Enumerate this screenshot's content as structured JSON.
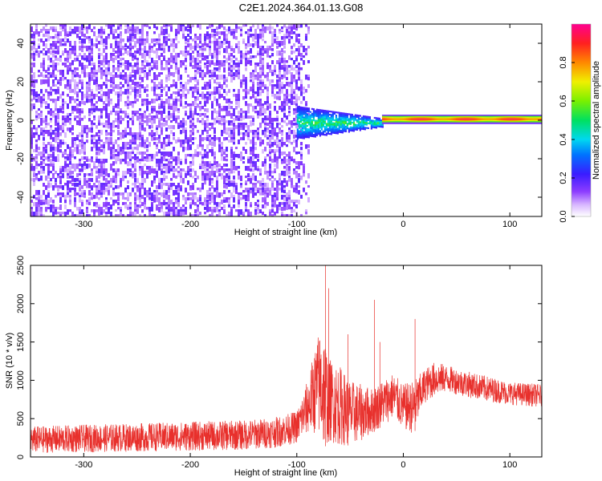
{
  "title": "C2E1.2024.364.01.13.G08",
  "chart_data": [
    {
      "type": "heatmap",
      "xlabel": "Height of straight line (km)",
      "ylabel": "Frequency (Hz)",
      "xlim": [
        -350,
        130
      ],
      "ylim": [
        -50,
        50
      ],
      "x_ticks": [
        -300,
        -200,
        -100,
        0,
        100
      ],
      "x_tick_labels": [
        "-300",
        "-200",
        "-100",
        "0",
        "100"
      ],
      "y_ticks": [
        -40,
        -20,
        0,
        20,
        40
      ],
      "y_tick_labels": [
        "-40",
        "-20",
        "0",
        "20",
        "40"
      ],
      "colorbar": {
        "label": "Normalized spectral amplitude",
        "range": [
          0,
          1
        ],
        "ticks": [
          0.0,
          0.2,
          0.4,
          0.6,
          0.8
        ],
        "tick_labels": [
          "0.0",
          "0.2",
          "0.4",
          "0.6",
          "0.8"
        ]
      },
      "regions": [
        {
          "x_range": [
            -350,
            -90
          ],
          "freq_range": [
            -50,
            50
          ],
          "amplitude_range": [
            0.05,
            0.18
          ],
          "pattern": "noise"
        },
        {
          "x_range": [
            -100,
            -20
          ],
          "freq_range": [
            -8,
            6
          ],
          "amplitude_range": [
            0.2,
            0.6
          ],
          "pattern": "band"
        },
        {
          "x_range": [
            -20,
            130
          ],
          "freq_range": [
            -1.5,
            2.5
          ],
          "amplitude_range": [
            0.45,
            0.95
          ],
          "pattern": "line"
        }
      ]
    },
    {
      "type": "line",
      "xlabel": "Height of straight line (km)",
      "ylabel": "SNR (10 * v/v)",
      "xlim": [
        -350,
        130
      ],
      "ylim": [
        0,
        2500
      ],
      "x_ticks": [
        -300,
        -200,
        -100,
        0,
        100
      ],
      "x_tick_labels": [
        "-300",
        "-200",
        "-100",
        "0",
        "100"
      ],
      "y_ticks": [
        0,
        500,
        1000,
        1500,
        2000,
        2500
      ],
      "y_tick_labels": [
        "0",
        "500",
        "1000",
        "1500",
        "2000",
        "2500"
      ],
      "color": "#e8302c",
      "series": [
        {
          "envelope": {
            "x": [
              -350,
              -300,
              -250,
              -200,
              -150,
              -120,
              -100,
              -90,
              -80,
              -75,
              -70,
              -60,
              -50,
              -40,
              -30,
              -20,
              -10,
              0,
              10,
              20,
              30,
              40,
              60,
              80,
              100,
              130
            ],
            "low": [
              50,
              60,
              70,
              80,
              90,
              120,
              180,
              300,
              300,
              100,
              200,
              150,
              150,
              200,
              300,
              400,
              500,
              350,
              300,
              700,
              800,
              850,
              780,
              720,
              680,
              650
            ],
            "high": [
              400,
              420,
              440,
              460,
              480,
              520,
              600,
              1000,
              1600,
              1700,
              1300,
              1200,
              1000,
              950,
              900,
              1000,
              1100,
              950,
              1000,
              1150,
              1250,
              1200,
              1120,
              1050,
              980,
              950
            ]
          },
          "spikes": [
            {
              "x": -73,
              "y": 2500
            },
            {
              "x": -70,
              "y": 2200
            },
            {
              "x": -52,
              "y": 1600
            },
            {
              "x": -27,
              "y": 2050
            },
            {
              "x": -22,
              "y": 1500
            },
            {
              "x": 11,
              "y": 1800
            }
          ]
        }
      ]
    }
  ]
}
